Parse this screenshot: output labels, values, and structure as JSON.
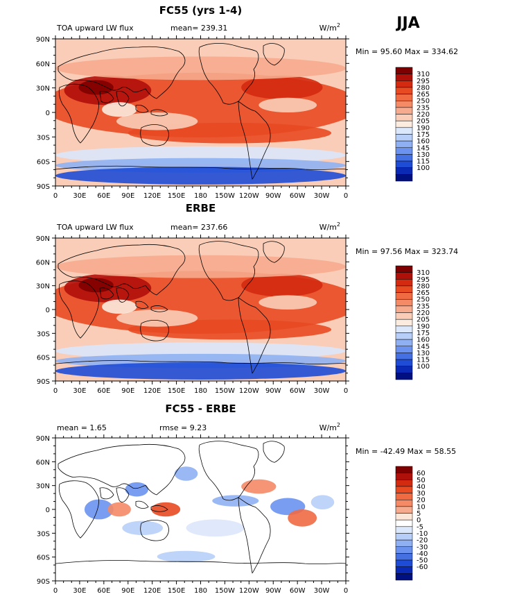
{
  "season": "JJA",
  "units_base": "W/m",
  "units_exp": "2",
  "lat_ticks": [
    "90N",
    "60N",
    "30N",
    "0",
    "30S",
    "60S",
    "90S"
  ],
  "lon_ticks": [
    "0",
    "30E",
    "60E",
    "90E",
    "120E",
    "150E",
    "180",
    "150W",
    "120W",
    "90W",
    "60W",
    "30W",
    "0"
  ],
  "panels": [
    {
      "title": "FC55 (yrs 1-4)",
      "left_label": "TOA upward LW flux",
      "stat1_label": "mean=",
      "stat1_value": "239.31",
      "stat2_label": "",
      "stat2_value": "",
      "min_label": "Min =",
      "min_value": "95.60",
      "max_label": "Max =",
      "max_value": "334.62",
      "type": "abs",
      "colorbar": {
        "levels": [
          "310",
          "295",
          "280",
          "265",
          "250",
          "235",
          "220",
          "205",
          "190",
          "175",
          "160",
          "145",
          "130",
          "115",
          "100"
        ],
        "colors": [
          "#7f0000",
          "#b0100a",
          "#d42a10",
          "#e84a22",
          "#f06a42",
          "#f48a66",
          "#f6ab8e",
          "#f9cdb7",
          "#fcebdf",
          "#dbe7fb",
          "#b7cff8",
          "#8fb1f3",
          "#6a92ee",
          "#4470e4",
          "#1e4cd6",
          "#0a2ab6",
          "#001080"
        ]
      }
    },
    {
      "title": "ERBE",
      "left_label": "TOA upward LW flux",
      "stat1_label": "mean=",
      "stat1_value": "237.66",
      "stat2_label": "",
      "stat2_value": "",
      "min_label": "Min =",
      "min_value": "97.56",
      "max_label": "Max =",
      "max_value": "323.74",
      "type": "abs",
      "colorbar": {
        "levels": [
          "310",
          "295",
          "280",
          "265",
          "250",
          "235",
          "220",
          "205",
          "190",
          "175",
          "160",
          "145",
          "130",
          "115",
          "100"
        ],
        "colors": [
          "#7f0000",
          "#b0100a",
          "#d42a10",
          "#e84a22",
          "#f06a42",
          "#f48a66",
          "#f6ab8e",
          "#f9cdb7",
          "#fcebdf",
          "#dbe7fb",
          "#b7cff8",
          "#8fb1f3",
          "#6a92ee",
          "#4470e4",
          "#1e4cd6",
          "#0a2ab6",
          "#001080"
        ]
      }
    },
    {
      "title": "FC55 - ERBE",
      "left_label": "",
      "stat1_label": "mean =",
      "stat1_value": "1.65",
      "stat2_label": "rmse =",
      "stat2_value": "9.23",
      "min_label": "Min =",
      "min_value": "-42.49",
      "max_label": "Max =",
      "max_value": "58.55",
      "type": "diff",
      "colorbar": {
        "levels": [
          "60",
          "50",
          "40",
          "30",
          "20",
          "10",
          "5",
          "0",
          "-5",
          "-10",
          "-20",
          "-30",
          "-40",
          "-50",
          "-60"
        ],
        "colors": [
          "#7f0000",
          "#b0100a",
          "#d42a10",
          "#e84a22",
          "#f06a42",
          "#f48a66",
          "#f6ab8e",
          "#fbe6d8",
          "#ffffff",
          "#dbe7fb",
          "#b7cff8",
          "#8fb1f3",
          "#6a92ee",
          "#4470e4",
          "#1e4cd6",
          "#0a2ab6",
          "#001080"
        ]
      }
    }
  ]
}
